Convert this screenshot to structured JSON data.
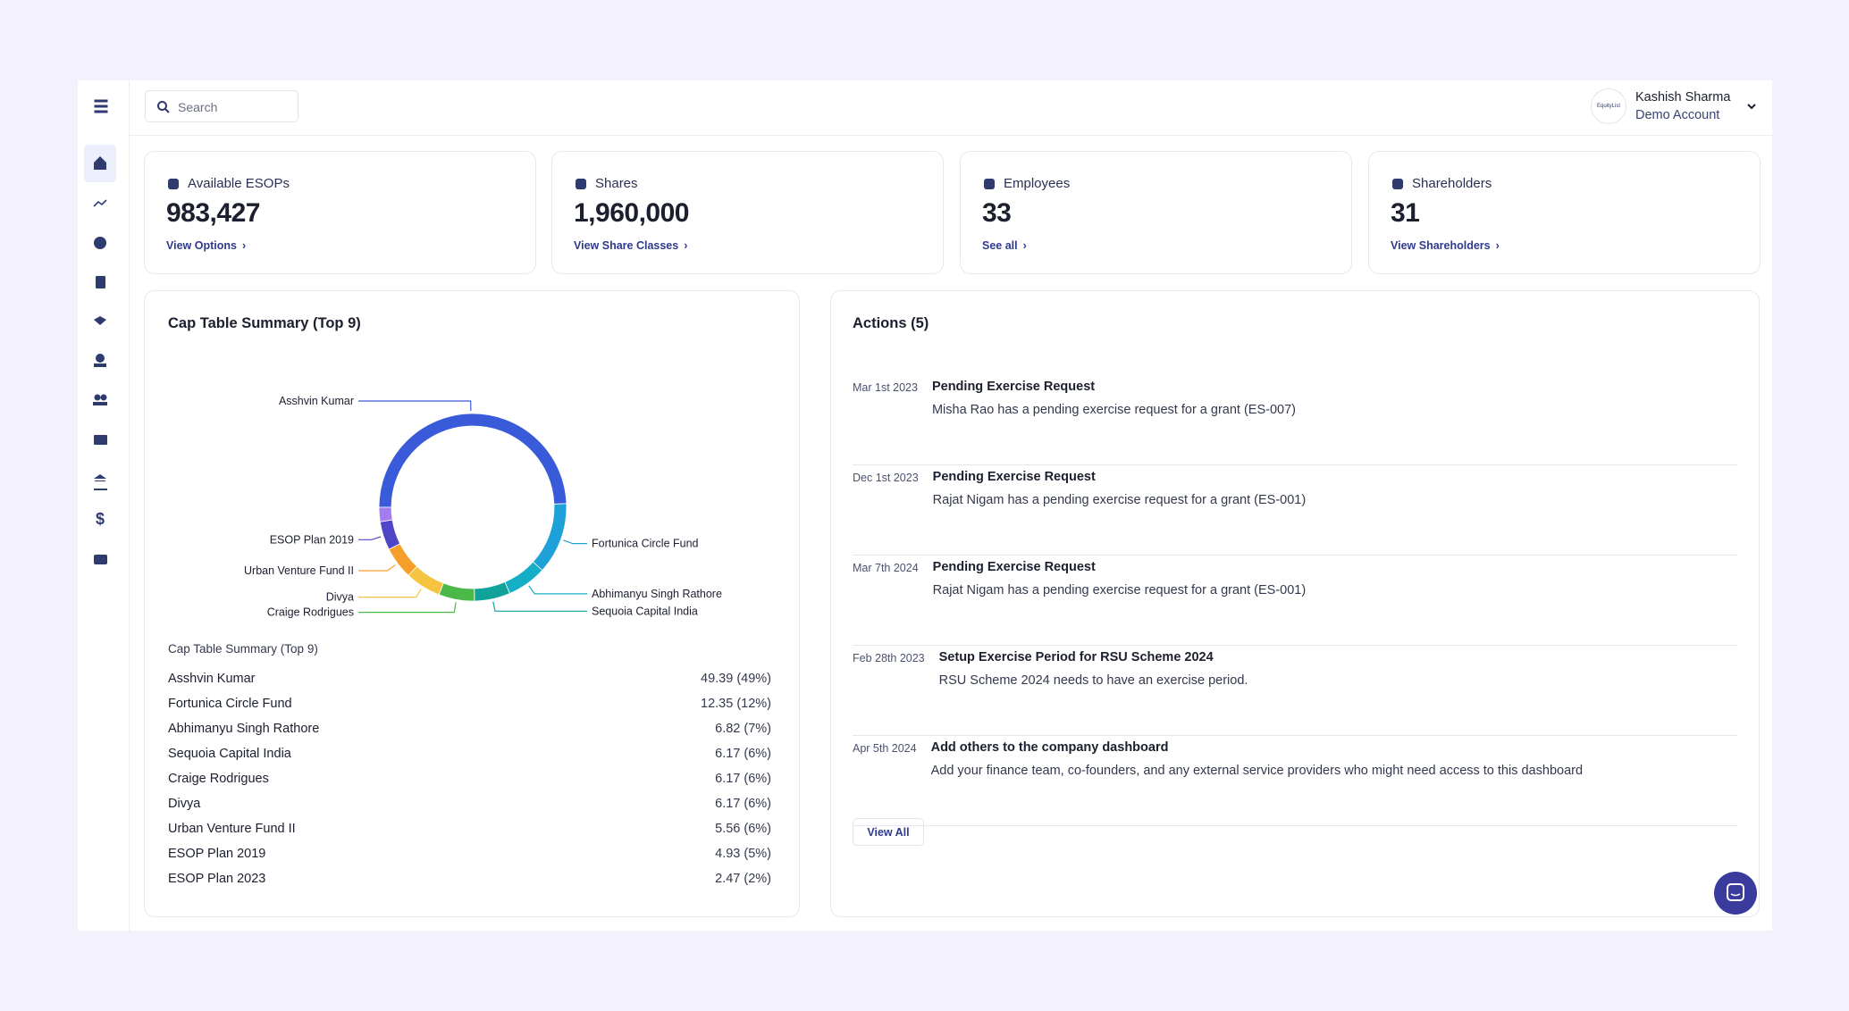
{
  "header": {
    "search_placeholder": "Search",
    "logo": "EquityList",
    "user_name": "Kashish Sharma",
    "account": "Demo Account"
  },
  "stats": [
    {
      "label": "Available ESOPs",
      "value": "983,427",
      "link": "View Options"
    },
    {
      "label": "Shares",
      "value": "1,960,000",
      "link": "View Share Classes"
    },
    {
      "label": "Employees",
      "value": "33",
      "link": "See all"
    },
    {
      "label": "Shareholders",
      "value": "31",
      "link": "View Shareholders"
    }
  ],
  "cap_table": {
    "title": "Cap Table Summary (Top 9)",
    "list_title": "Cap Table Summary (Top 9)"
  },
  "chart_data": {
    "type": "pie",
    "donut": true,
    "categories": [
      "Asshvin Kumar",
      "Fortunica Circle Fund",
      "Abhimanyu Singh Rathore",
      "Sequoia Capital India",
      "Craige Rodrigues",
      "Divya",
      "Urban Venture Fund II",
      "ESOP Plan 2019",
      "ESOP Plan 2023"
    ],
    "values": [
      49.39,
      12.35,
      6.82,
      6.17,
      6.17,
      6.17,
      5.56,
      4.93,
      2.47
    ],
    "value_labels": [
      "49.39 (49%)",
      "12.35 (12%)",
      "6.82 (7%)",
      "6.17 (6%)",
      "6.17 (6%)",
      "6.17 (6%)",
      "5.56 (6%)",
      "4.93 (5%)",
      "2.47 (2%)"
    ],
    "colors": [
      "#3a5bd9",
      "#1ea0d8",
      "#14aec6",
      "#11a39a",
      "#4cb848",
      "#f5c542",
      "#f59f2a",
      "#5046c8",
      "#a47cf0"
    ]
  },
  "actions": {
    "title": "Actions (5)",
    "view_all": "View All",
    "items": [
      {
        "date": "Mar 1st 2023",
        "title": "Pending Exercise Request",
        "description": "Misha Rao has a pending exercise request for a grant (ES-007)"
      },
      {
        "date": "Dec 1st 2023",
        "title": "Pending Exercise Request",
        "description": "Rajat Nigam has a pending exercise request for a grant (ES-001)"
      },
      {
        "date": "Mar 7th 2024",
        "title": "Pending Exercise Request",
        "description": "Rajat Nigam has a pending exercise request for a grant (ES-001)"
      },
      {
        "date": "Feb 28th 2023",
        "title": "Setup Exercise Period for RSU Scheme 2024",
        "description": "RSU Scheme 2024 needs to have an exercise period."
      },
      {
        "date": "Apr 5th 2024",
        "title": "Add others to the company dashboard",
        "description": "Add your finance team, co-founders, and any external service providers who might need access to this dashboard"
      }
    ]
  }
}
